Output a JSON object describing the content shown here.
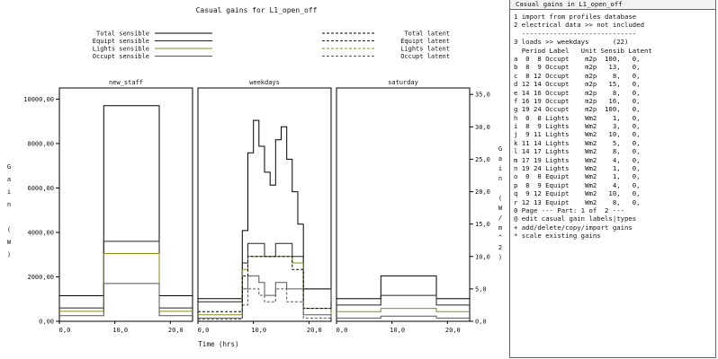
{
  "plot": {
    "title": "Casual gains for L1_open_off",
    "legend": {
      "sensible": [
        {
          "label": "Total sensible",
          "color": "#000000",
          "dash": "solid"
        },
        {
          "label": "Equipt sensible",
          "color": "#222222",
          "dash": "solid"
        },
        {
          "label": "Lights sensible",
          "color": "#8a8a1a",
          "dash": "solid"
        },
        {
          "label": "Occupt sensible",
          "color": "#555555",
          "dash": "solid"
        }
      ],
      "latent": [
        {
          "label": "Total latent",
          "color": "#000000",
          "dash": "dashed"
        },
        {
          "label": "Equipt latent",
          "color": "#222222",
          "dash": "dashed"
        },
        {
          "label": "Lights latent",
          "color": "#8a8a1a",
          "dash": "dashed"
        },
        {
          "label": "Occupt latent",
          "color": "#555555",
          "dash": "dashed"
        }
      ]
    },
    "day_types": [
      "new_staff",
      "weekdays",
      "saturday"
    ],
    "left_axis_label": "Gain (W)",
    "left_ticks": [
      "0,00",
      "2000,00",
      "4000,00",
      "6000,00",
      "8000,00",
      "10000,00"
    ],
    "right_axis_label": "Gain (W/m^2)",
    "right_ticks": [
      "0,0",
      "5,0",
      "10,0",
      "15,0",
      "20,0",
      "25,0",
      "30,0",
      "35,0"
    ],
    "x_ticks": [
      "0,0",
      "10,0",
      "20,0"
    ],
    "x_axis_label": "Time (hrs)"
  },
  "chart_data": {
    "type": "line",
    "step": true,
    "title": "Casual gains for L1_open_off",
    "xlabel": "Time (hrs)",
    "ylabel": "Gain (W)",
    "ylabel_right": "Gain (W/m^2)",
    "xlim": [
      0,
      24
    ],
    "ylim": [
      0,
      10500
    ],
    "ylim_right": [
      0,
      36
    ],
    "panels": [
      {
        "name": "new_staff",
        "axis": "left",
        "series": [
          {
            "name": "Total sensible",
            "x": [
              0,
              8,
              18,
              24
            ],
            "values": [
              1150,
              9700,
              1150,
              1150
            ]
          },
          {
            "name": "Equipt sensible",
            "x": [
              0,
              8,
              18,
              24
            ],
            "values": [
              600,
              3600,
              600,
              600
            ]
          },
          {
            "name": "Lights sensible",
            "x": [
              0,
              8,
              18,
              24
            ],
            "values": [
              450,
              3050,
              450,
              450
            ]
          },
          {
            "name": "Occupt sensible",
            "x": [
              0,
              8,
              18,
              24
            ],
            "values": [
              250,
              1700,
              250,
              250
            ]
          }
        ]
      },
      {
        "name": "weekdays",
        "axis": "right",
        "series": [
          {
            "name": "Total sensible",
            "x": [
              0,
              8,
              9,
              10,
              11,
              12,
              13,
              14,
              15,
              16,
              17,
              18,
              19,
              24
            ],
            "values": [
              3.5,
              14,
              26,
              31,
              27,
              23,
              21,
              28,
              30,
              25,
              20,
              15,
              5,
              5
            ]
          },
          {
            "name": "Equipt sensible",
            "x": [
              0,
              8,
              9,
              12,
              14,
              17,
              19,
              24
            ],
            "values": [
              3,
              9,
              12,
              10,
              12,
              10,
              5,
              3
            ]
          },
          {
            "name": "Lights sensible",
            "x": [
              0,
              8,
              9,
              12,
              14,
              17,
              19,
              24
            ],
            "values": [
              1,
              8,
              10,
              10,
              10,
              9,
              2,
              1
            ]
          },
          {
            "name": "Occupt sensible",
            "x": [
              0,
              8,
              9,
              11,
              12,
              14,
              16,
              19,
              24
            ],
            "values": [
              0.5,
              5,
              7,
              6,
              4,
              6,
              5,
              1,
              0.5
            ]
          },
          {
            "name": "Total latent",
            "x": [
              0,
              8,
              9,
              12,
              14,
              17,
              19,
              24
            ],
            "values": [
              1.5,
              7,
              10,
              10,
              10,
              8,
              2,
              1.5
            ]
          },
          {
            "name": "Occupt latent",
            "x": [
              0,
              8,
              9,
              11,
              12,
              14,
              16,
              19,
              24
            ],
            "values": [
              0.3,
              2.5,
              5,
              4,
              3,
              5,
              3,
              0.5,
              0.3
            ]
          }
        ]
      },
      {
        "name": "saturday",
        "axis": "right",
        "series": [
          {
            "name": "Total sensible",
            "x": [
              0,
              8,
              18,
              24
            ],
            "values": [
              3.5,
              7,
              3.5,
              3.5
            ]
          },
          {
            "name": "Equipt sensible",
            "x": [
              0,
              8,
              18,
              24
            ],
            "values": [
              2.5,
              4,
              2.5,
              2.5
            ]
          },
          {
            "name": "Lights sensible",
            "x": [
              0,
              8,
              18,
              24
            ],
            "values": [
              1.5,
              2,
              1.5,
              1.5
            ]
          },
          {
            "name": "Occupt sensible",
            "x": [
              0,
              8,
              18,
              24
            ],
            "values": [
              0.5,
              0.8,
              0.5,
              0.5
            ]
          }
        ]
      }
    ]
  },
  "menu": {
    "title": "Casual gains in L1_open_off",
    "lines": [
      "1 import from profiles database",
      "2 electrical data >> not included",
      "  -----------------------------",
      "3 loads >> weekdays      (22)",
      "  Period Label   Unit Sensib Latent",
      "a  0  8 Occupt    m2p  100,   0,",
      "b  8  9 Occupt    m2p   13,   0,",
      "c  8 12 Occupt    m2p    8,   0,",
      "d 12 14 Occupt    m2p   15,   0,",
      "e 14 16 Occupt    m2p    8,   0,",
      "f 16 19 Occupt    m2p   16,   0,",
      "g 19 24 Occupt    m2p  100,   0,",
      "h  0  8 Lights    Wm2    1,   0,",
      "i  8  9 Lights    Wm2    3,   0,",
      "j  9 11 Lights    Wm2   10,   0,",
      "k 11 14 Lights    Wm2    5,   0,",
      "l 14 17 Lights    Wm2    8,   0,",
      "m 17 19 Lights    Wm2    4,   0,",
      "n 19 24 Lights    Wm2    1,   0,",
      "o  0  8 Equipt    Wm2    1,   0,",
      "p  8  9 Equipt    Wm2    4,   0,",
      "q  9 12 Equipt    Wm2   10,   0,",
      "r 12 13 Equipt    Wm2    8,   0,",
      "0 Page --- Part: 1 of  2 ---",
      "@ edit casual gain labels|types",
      "+ add/delete/copy/import gains",
      "* scale existing gains"
    ]
  }
}
